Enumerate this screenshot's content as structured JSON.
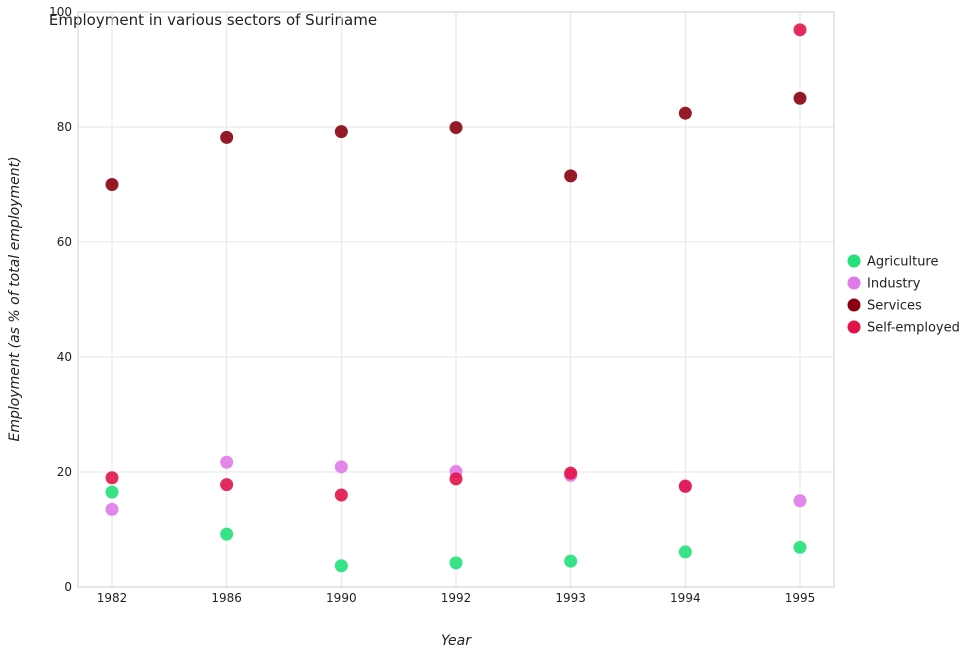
{
  "chart_data": {
    "type": "scatter",
    "title": "Employment in various sectors of Suriname",
    "xlabel": "Year",
    "ylabel": "Employment (as % of total employment)",
    "categories": [
      "1982",
      "1986",
      "1990",
      "1992",
      "1993",
      "1994",
      "1995"
    ],
    "ylim": [
      0,
      100
    ],
    "yticks": [
      "0",
      "20",
      "40",
      "60",
      "80",
      "100"
    ],
    "grid": true,
    "legend_position": "right",
    "series": [
      {
        "name": "Agriculture",
        "color": "#22e07a",
        "values": [
          16.5,
          9.2,
          3.7,
          4.2,
          4.5,
          6.1,
          6.9
        ]
      },
      {
        "name": "Industry",
        "color": "#e07ae8",
        "values": [
          13.5,
          21.7,
          20.9,
          20.1,
          19.4,
          17.6,
          15.0
        ]
      },
      {
        "name": "Services",
        "color": "#8b0010",
        "values": [
          70.0,
          78.2,
          79.2,
          79.9,
          71.5,
          82.4,
          85.0
        ]
      },
      {
        "name": "Self-employed",
        "color": "#e0144a",
        "values": [
          19.0,
          17.8,
          16.0,
          18.8,
          19.8,
          17.5,
          96.9
        ]
      }
    ]
  }
}
